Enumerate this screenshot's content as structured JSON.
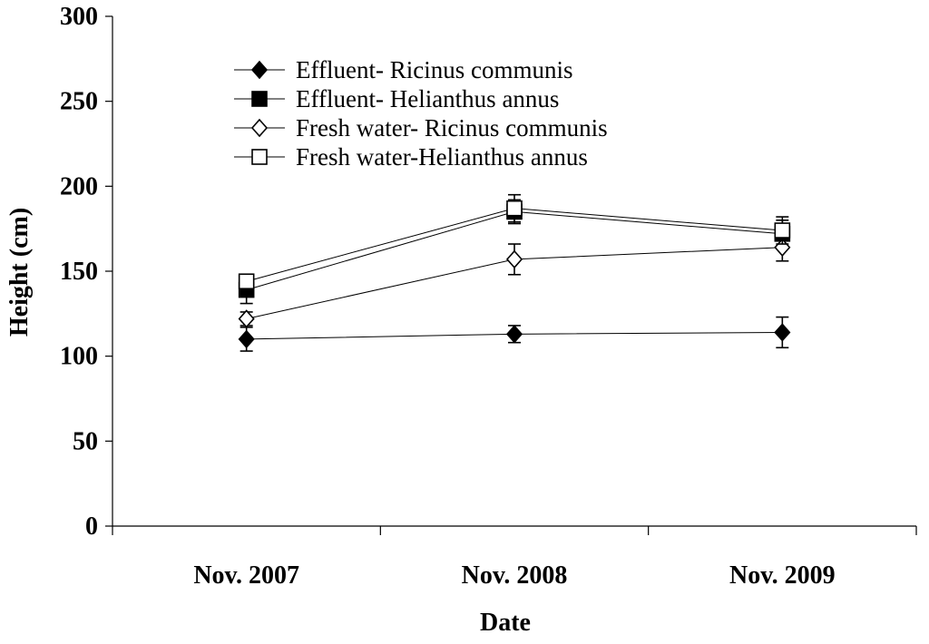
{
  "chart_data": {
    "type": "line",
    "title": "",
    "xlabel": "Date",
    "ylabel": "Height (cm)",
    "categories": [
      "Nov. 2007",
      "Nov. 2008",
      "Nov. 2009"
    ],
    "ylim": [
      0,
      300
    ],
    "yticks": [
      "0",
      "50",
      "100",
      "150",
      "200",
      "250",
      "300"
    ],
    "grid": false,
    "legend_position": "top-left",
    "series": [
      {
        "name": "Effluent- Ricinus communis",
        "marker": "diamond-filled",
        "values": [
          110,
          113,
          114
        ],
        "errors": [
          7,
          5,
          9
        ]
      },
      {
        "name": "Effluent- Helianthus annus",
        "marker": "square-filled",
        "values": [
          139,
          185,
          172
        ],
        "errors": [
          8,
          7,
          8
        ]
      },
      {
        "name": "Fresh water- Ricinus communis",
        "marker": "diamond-open",
        "values": [
          122,
          157,
          164
        ],
        "errors": [
          4,
          9,
          8
        ]
      },
      {
        "name": "Fresh water-Helianthus annus",
        "marker": "square-open",
        "values": [
          144,
          187,
          174
        ],
        "errors": [
          4,
          8,
          8
        ]
      }
    ],
    "colors": {
      "line": "#000000",
      "marker": "#000000",
      "background": "#ffffff"
    }
  }
}
